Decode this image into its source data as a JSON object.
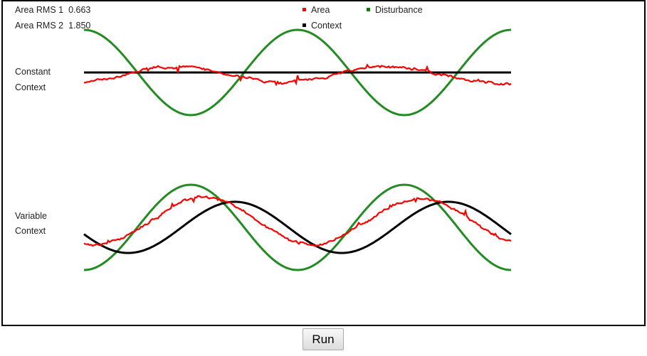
{
  "stats": {
    "rms1": {
      "label": "Area RMS 1",
      "value": "0.663"
    },
    "rms2": {
      "label": "Area RMS 2",
      "value": "1.850"
    }
  },
  "legend": [
    {
      "label": "Area",
      "color": "#ff0000"
    },
    {
      "label": "Disturbance",
      "color": "#008000"
    },
    {
      "label": "Context",
      "color": "#000000"
    }
  ],
  "panels": {
    "constant": {
      "line1": "Constant",
      "line2": "Context"
    },
    "variable": {
      "line1": "Variable",
      "line2": "Context"
    }
  },
  "colors": {
    "area": "#ff0000",
    "disturbance": "#228b22",
    "context": "#000000"
  },
  "chart_data": [
    {
      "type": "line",
      "series": [
        {
          "name": "Disturbance",
          "values": "sinusoid, ~2 cycles, peaks at start, middle and end"
        },
        {
          "name": "Context",
          "values": "constant, flat at zero"
        },
        {
          "name": "Area",
          "values": "noisy trace, inverse of disturbance, small amplitude"
        }
      ]
    },
    {
      "type": "line",
      "series": [
        {
          "name": "Disturbance",
          "values": "sinusoid, ~2 cycles, troughs at start, middle and end"
        },
        {
          "name": "Context",
          "values": "sinusoid, lags disturbance by ~quarter cycle"
        },
        {
          "name": "Area",
          "values": "noisy trace following the context sinusoid"
        }
      ]
    }
  ],
  "run_button": {
    "label": "Run"
  }
}
